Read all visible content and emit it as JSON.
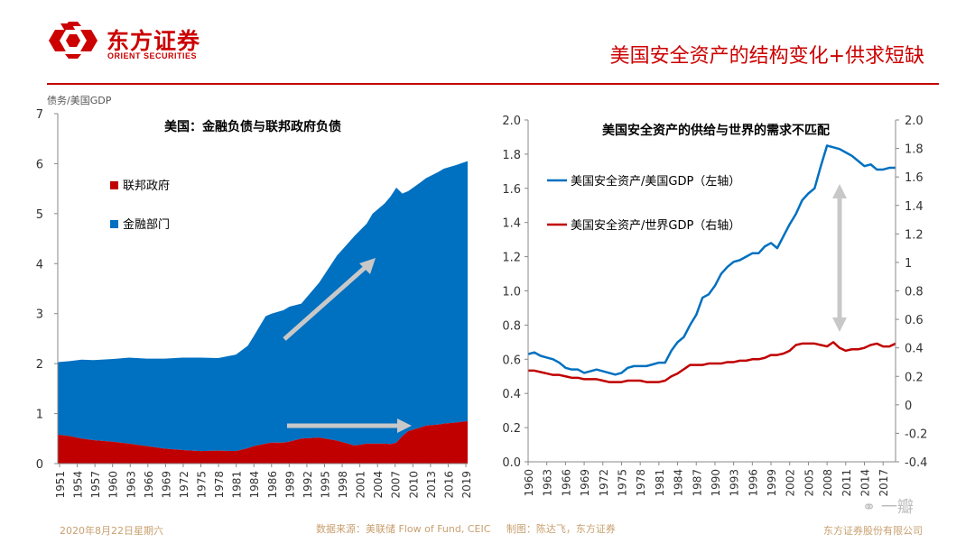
{
  "header": {
    "logo_cn": "东方证券",
    "logo_en": "ORIENT SECURITIES",
    "slide_title": "美国安全资产的结构变化+供求短缺"
  },
  "footer": {
    "date": "2020年8月22日星期六",
    "source": "数据来源：美联储 Flow of Fund, CEIC",
    "made_by": "制图：陈达飞，东方证券",
    "company": "东方证券股份有限公司",
    "watermark": "一瓣"
  },
  "colors": {
    "brand_red": "#cc0000",
    "blue": "#0070c0",
    "red": "#c00000",
    "arrow": "#bfbfbf"
  },
  "chart_data": [
    {
      "type": "area",
      "stacked": true,
      "title": "美国：金融负债与联邦政府负债",
      "ylabel": "债务/美国GDP",
      "ylim": [
        0,
        7
      ],
      "yticks": [
        0,
        1,
        2,
        3,
        4,
        5,
        6,
        7
      ],
      "xticks": [
        "1951",
        "1954",
        "1957",
        "1960",
        "1963",
        "1966",
        "1969",
        "1972",
        "1975",
        "1978",
        "1981",
        "1984",
        "1986",
        "1989",
        "1992",
        "1995",
        "1998",
        "2001",
        "2004",
        "2007",
        "2010",
        "2013",
        "2016",
        "2019"
      ],
      "legend_position": "top-left",
      "x": [
        1951,
        1953,
        1955,
        1957,
        1960,
        1963,
        1966,
        1969,
        1972,
        1975,
        1978,
        1981,
        1983,
        1984,
        1986,
        1987,
        1989,
        1990,
        1992,
        1995,
        1998,
        2001,
        2003,
        2004,
        2006,
        2007,
        2008,
        2009,
        2010,
        2012,
        2013,
        2015,
        2016,
        2018,
        2020
      ],
      "series": [
        {
          "name": "联邦政府",
          "color": "#c00000",
          "values": [
            0.58,
            0.55,
            0.5,
            0.47,
            0.44,
            0.4,
            0.35,
            0.3,
            0.27,
            0.25,
            0.26,
            0.25,
            0.31,
            0.35,
            0.4,
            0.42,
            0.42,
            0.44,
            0.5,
            0.52,
            0.46,
            0.36,
            0.4,
            0.4,
            0.4,
            0.39,
            0.42,
            0.55,
            0.65,
            0.72,
            0.76,
            0.78,
            0.8,
            0.82,
            0.85
          ]
        },
        {
          "name": "金融部门",
          "color": "#0070c0",
          "values": [
            1.45,
            1.5,
            1.58,
            1.6,
            1.65,
            1.72,
            1.75,
            1.8,
            1.85,
            1.87,
            1.85,
            1.93,
            2.05,
            2.2,
            2.55,
            2.58,
            2.65,
            2.7,
            2.7,
            3.1,
            3.7,
            4.2,
            4.4,
            4.6,
            4.8,
            4.95,
            5.1,
            4.85,
            4.8,
            4.9,
            4.95,
            5.05,
            5.1,
            5.15,
            5.2
          ]
        }
      ],
      "annotations": [
        "上升箭头（金融部门）",
        "水平箭头（联邦政府）"
      ]
    },
    {
      "type": "line",
      "title": "美国安全资产的供给与世界的需求不匹配",
      "ylim": [
        0.0,
        2.0
      ],
      "yticks_left": [
        "0.0",
        "0.2",
        "0.4",
        "0.6",
        "0.8",
        "1.0",
        "1.2",
        "1.4",
        "1.6",
        "1.8",
        "2.0"
      ],
      "y2lim": [
        -0.4,
        2.0
      ],
      "yticks_right": [
        "-0.4",
        "-0.2",
        "0",
        "0.2",
        "0.4",
        "0.6",
        "0.8",
        "1",
        "1.2",
        "1.4",
        "1.6",
        "1.8",
        "2.0"
      ],
      "xticks": [
        "1960",
        "1963",
        "1966",
        "1969",
        "1972",
        "1975",
        "1978",
        "1981",
        "1984",
        "1987",
        "1990",
        "1993",
        "1996",
        "1999",
        "2002",
        "2005",
        "2008",
        "2011",
        "2014",
        "2017"
      ],
      "legend_position": "top-left",
      "x": [
        1960,
        1961,
        1962,
        1963,
        1964,
        1965,
        1966,
        1967,
        1968,
        1969,
        1970,
        1971,
        1972,
        1973,
        1974,
        1975,
        1976,
        1977,
        1978,
        1979,
        1980,
        1981,
        1982,
        1983,
        1984,
        1985,
        1986,
        1987,
        1988,
        1989,
        1990,
        1991,
        1992,
        1993,
        1994,
        1995,
        1996,
        1997,
        1998,
        1999,
        2000,
        2001,
        2002,
        2003,
        2004,
        2005,
        2006,
        2007,
        2008,
        2009,
        2010,
        2011,
        2012,
        2013,
        2014,
        2015,
        2016,
        2017,
        2018,
        2019
      ],
      "series": [
        {
          "name": "美国安全资产/美国GDP（左轴）",
          "axis": "left",
          "color": "#0070c0",
          "values": [
            0.63,
            0.64,
            0.62,
            0.61,
            0.6,
            0.58,
            0.55,
            0.54,
            0.54,
            0.52,
            0.53,
            0.54,
            0.53,
            0.52,
            0.51,
            0.52,
            0.55,
            0.56,
            0.56,
            0.56,
            0.57,
            0.58,
            0.58,
            0.65,
            0.7,
            0.73,
            0.8,
            0.86,
            0.96,
            0.98,
            1.03,
            1.1,
            1.14,
            1.17,
            1.18,
            1.2,
            1.22,
            1.22,
            1.26,
            1.28,
            1.25,
            1.32,
            1.39,
            1.45,
            1.53,
            1.57,
            1.6,
            1.73,
            1.85,
            1.84,
            1.83,
            1.81,
            1.79,
            1.76,
            1.73,
            1.74,
            1.71,
            1.71,
            1.72,
            1.72
          ]
        },
        {
          "name": "美国安全资产/世界GDP（右轴）",
          "axis": "right",
          "color": "#c00000",
          "values": [
            0.24,
            0.24,
            0.23,
            0.22,
            0.21,
            0.21,
            0.2,
            0.19,
            0.19,
            0.18,
            0.18,
            0.18,
            0.17,
            0.16,
            0.16,
            0.16,
            0.17,
            0.17,
            0.17,
            0.16,
            0.16,
            0.16,
            0.17,
            0.2,
            0.22,
            0.25,
            0.28,
            0.28,
            0.28,
            0.29,
            0.29,
            0.29,
            0.3,
            0.3,
            0.31,
            0.31,
            0.32,
            0.32,
            0.33,
            0.35,
            0.35,
            0.36,
            0.38,
            0.42,
            0.43,
            0.43,
            0.43,
            0.42,
            0.41,
            0.44,
            0.4,
            0.38,
            0.39,
            0.39,
            0.4,
            0.42,
            0.43,
            0.41,
            0.41,
            0.43
          ]
        }
      ],
      "annotations": [
        "双向竖直箭头（供求缺口）"
      ]
    }
  ]
}
